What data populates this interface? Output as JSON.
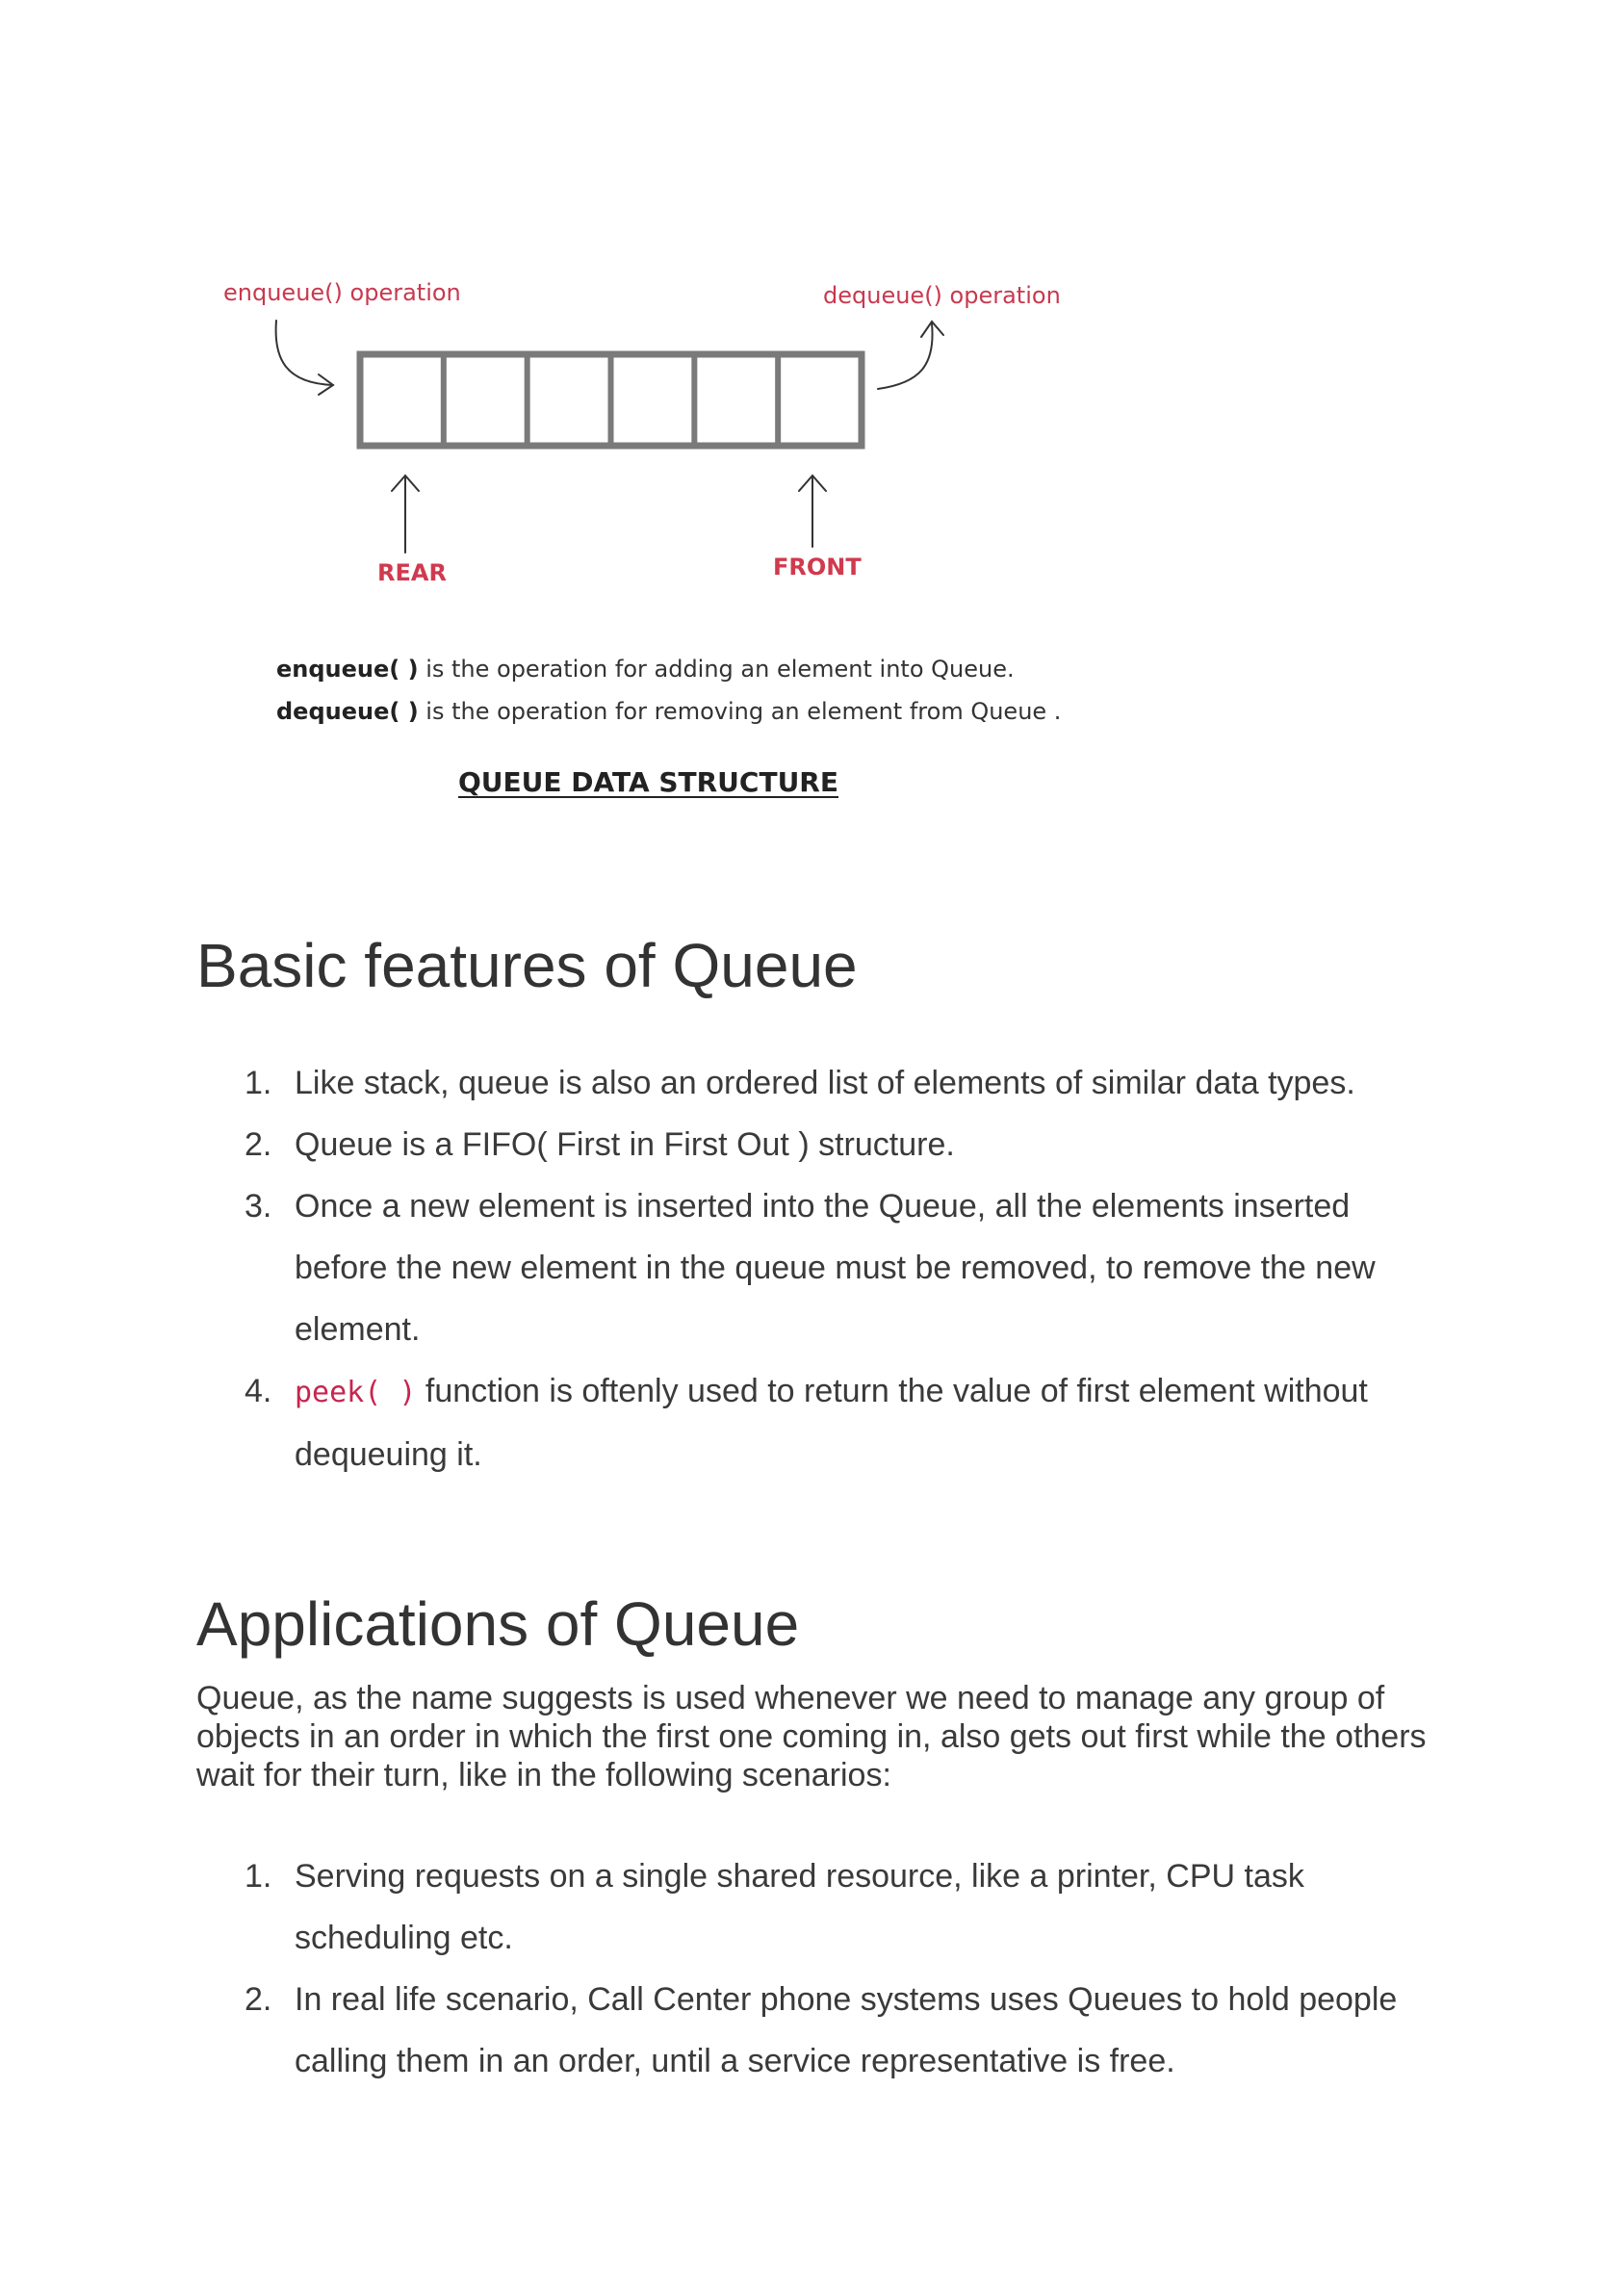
{
  "diagram": {
    "enqueue_label": "enqueue() operation",
    "dequeue_label": "dequeue() operation",
    "rear_label": "REAR",
    "front_label": "FRONT",
    "cell_count": 6,
    "enqueue_desc_term": "enqueue( )",
    "enqueue_desc_text": " is the operation for adding an element into Queue.",
    "dequeue_desc_term": "dequeue( )",
    "dequeue_desc_text": " is the operation for removing an element from Queue .",
    "caption": "QUEUE DATA STRUCTURE",
    "colors": {
      "label_red": "#c8394f",
      "box_stroke": "#7a7a7a"
    }
  },
  "features": {
    "heading": "Basic features of Queue",
    "items": [
      {
        "num": "1.",
        "text": "Like stack, queue is also an ordered list of elements of similar data types."
      },
      {
        "num": "2.",
        "text": "Queue is a FIFO( First in First Out ) structure."
      },
      {
        "num": "3.",
        "text": "Once a new element is inserted into the Queue, all the elements inserted before the new element in the queue must be removed, to remove the new element."
      },
      {
        "num": "4.",
        "code": "peek( )",
        "text": " function is oftenly used to return the value of first element without dequeuing it."
      }
    ]
  },
  "applications": {
    "heading": "Applications of Queue",
    "intro": "Queue, as the name suggests is used whenever we need to manage any group of objects in an order in which the first one coming in, also gets out first while the others wait for their turn, like in the following scenarios:",
    "items": [
      {
        "num": "1.",
        "text": "Serving requests on a single shared resource, like a printer, CPU task scheduling etc."
      },
      {
        "num": "2.",
        "text": "In real life scenario, Call Center phone systems uses Queues to hold people calling them in an order, until a service representative is free."
      }
    ]
  }
}
